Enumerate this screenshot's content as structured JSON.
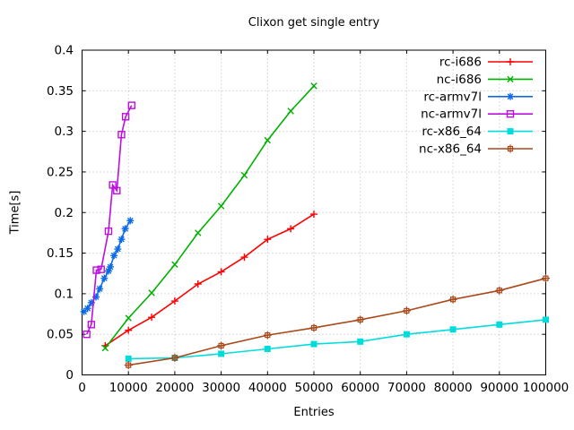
{
  "chart_data": {
    "type": "line",
    "title": "Clixon get single entry",
    "xlabel": "Entries",
    "ylabel": "Time[s]",
    "xlim": [
      0,
      100000
    ],
    "ylim": [
      0,
      0.4
    ],
    "grid": true,
    "legend_position": "top-right-inside",
    "xticks": [
      {
        "v": 0,
        "label": "0"
      },
      {
        "v": 10000,
        "label": "10000"
      },
      {
        "v": 20000,
        "label": "20000"
      },
      {
        "v": 30000,
        "label": "30000"
      },
      {
        "v": 40000,
        "label": "40000"
      },
      {
        "v": 50000,
        "label": "50000"
      },
      {
        "v": 60000,
        "label": "60000"
      },
      {
        "v": 70000,
        "label": "70000"
      },
      {
        "v": 80000,
        "label": "80000"
      },
      {
        "v": 90000,
        "label": "90000"
      },
      {
        "v": 100000,
        "label": "100000"
      }
    ],
    "yticks": [
      {
        "v": 0,
        "label": "0"
      },
      {
        "v": 0.05,
        "label": "0.05"
      },
      {
        "v": 0.1,
        "label": "0.1"
      },
      {
        "v": 0.15,
        "label": "0.15"
      },
      {
        "v": 0.2,
        "label": "0.2"
      },
      {
        "v": 0.25,
        "label": "0.25"
      },
      {
        "v": 0.3,
        "label": "0.3"
      },
      {
        "v": 0.35,
        "label": "0.35"
      },
      {
        "v": 0.4,
        "label": "0.4"
      }
    ],
    "series": [
      {
        "name": "rc-i686",
        "color": "#ff0000",
        "marker": "plus",
        "points": [
          [
            5000,
            0.036
          ],
          [
            10000,
            0.055
          ],
          [
            15000,
            0.071
          ],
          [
            20000,
            0.091
          ],
          [
            25000,
            0.112
          ],
          [
            30000,
            0.127
          ],
          [
            35000,
            0.145
          ],
          [
            40000,
            0.167
          ],
          [
            45000,
            0.18
          ],
          [
            50000,
            0.198
          ]
        ]
      },
      {
        "name": "nc-i686",
        "color": "#00b000",
        "marker": "cross",
        "points": [
          [
            5000,
            0.033
          ],
          [
            10000,
            0.07
          ],
          [
            15000,
            0.101
          ],
          [
            20000,
            0.136
          ],
          [
            25000,
            0.175
          ],
          [
            30000,
            0.208
          ],
          [
            35000,
            0.246
          ],
          [
            40000,
            0.289
          ],
          [
            45000,
            0.325
          ],
          [
            50000,
            0.356
          ]
        ]
      },
      {
        "name": "rc-armv7l",
        "color": "#0d6be8",
        "marker": "asterisk",
        "points": [
          [
            400,
            0.078
          ],
          [
            1200,
            0.082
          ],
          [
            2000,
            0.089
          ],
          [
            3000,
            0.096
          ],
          [
            3800,
            0.106
          ],
          [
            4800,
            0.119
          ],
          [
            5700,
            0.128
          ],
          [
            6100,
            0.133
          ],
          [
            6900,
            0.147
          ],
          [
            7700,
            0.155
          ],
          [
            8500,
            0.167
          ],
          [
            9300,
            0.18
          ],
          [
            10400,
            0.19
          ]
        ]
      },
      {
        "name": "nc-armv7l",
        "color": "#bd0fe0",
        "marker": "open-square",
        "points": [
          [
            1000,
            0.05
          ],
          [
            2000,
            0.062
          ],
          [
            3100,
            0.129
          ],
          [
            4100,
            0.13
          ],
          [
            5700,
            0.177
          ],
          [
            6600,
            0.234
          ],
          [
            7500,
            0.227
          ],
          [
            8500,
            0.296
          ],
          [
            9400,
            0.318
          ],
          [
            10700,
            0.332
          ]
        ]
      },
      {
        "name": "rc-x86_64",
        "color": "#00dcdc",
        "marker": "filled-square",
        "points": [
          [
            10000,
            0.02
          ],
          [
            20000,
            0.021
          ],
          [
            30000,
            0.026
          ],
          [
            40000,
            0.032
          ],
          [
            50000,
            0.038
          ],
          [
            60000,
            0.041
          ],
          [
            70000,
            0.05
          ],
          [
            80000,
            0.056
          ],
          [
            90000,
            0.062
          ],
          [
            100000,
            0.068
          ]
        ]
      },
      {
        "name": "nc-x86_64",
        "color": "#a9481a",
        "marker": "boxed-plus",
        "points": [
          [
            10000,
            0.012
          ],
          [
            20000,
            0.021
          ],
          [
            30000,
            0.036
          ],
          [
            40000,
            0.049
          ],
          [
            50000,
            0.058
          ],
          [
            60000,
            0.068
          ],
          [
            70000,
            0.079
          ],
          [
            80000,
            0.093
          ],
          [
            90000,
            0.104
          ],
          [
            100000,
            0.119
          ]
        ]
      }
    ],
    "colors": {
      "background": "#ffffff",
      "border": "#000000",
      "grid": "#b8b8b8",
      "text": "#000000"
    }
  }
}
